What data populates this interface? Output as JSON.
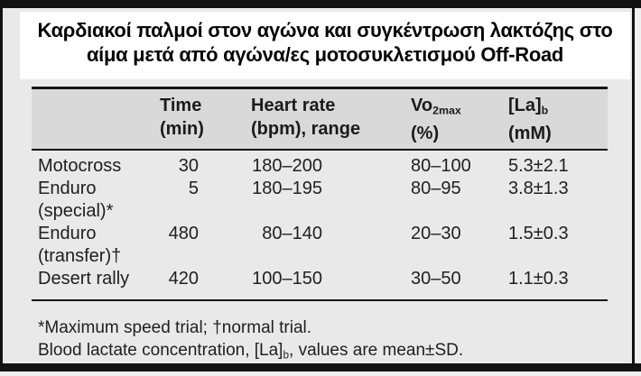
{
  "title": {
    "line1": "Καρδιακοί παλμοί στον αγώνα και συγκέντρωση λακτόζης στο",
    "line2": "αίμα μετά από αγώνα/ες μοτοσυκλετισμού Off-Road"
  },
  "table": {
    "headers": {
      "time": {
        "line1": "Time",
        "line2": "(min)"
      },
      "heart_rate": {
        "line1": "Heart rate",
        "line2": "(bpm), range"
      },
      "vo2max": {
        "prefix": "Vo",
        "sub": "2max",
        "unit": "(%)"
      },
      "lactate": {
        "prefix": "[La]",
        "sub": "b",
        "unit": "(mM)"
      }
    },
    "rows": [
      {
        "name": "Motocross",
        "qualifier": "",
        "time": "30",
        "heart_rate": "180–200",
        "vo2max": "80–100",
        "lactate": "5.3±2.1"
      },
      {
        "name": "Enduro",
        "qualifier": "(special)*",
        "time": "5",
        "heart_rate": "180–195",
        "vo2max": "80–95",
        "lactate": "3.8±1.3"
      },
      {
        "name": "Enduro",
        "qualifier": "(transfer)†",
        "time": "480",
        "heart_rate": "80–140",
        "vo2max": "20–30",
        "lactate": "1.5±0.3"
      },
      {
        "name": "Desert rally",
        "qualifier": "",
        "time": "420",
        "heart_rate": "100–150",
        "vo2max": "30–50",
        "lactate": "1.1±0.3"
      }
    ]
  },
  "footnotes": {
    "line1": "*Maximum speed trial; †normal trial.",
    "line2_prefix": "Blood lactate concentration, [La]",
    "line2_sub": "b",
    "line2_suffix": ", values are mean±SD."
  },
  "colors": {
    "frame_border": "#121212",
    "page_background": "#e9e9e9",
    "header_background": "#d9d9d9",
    "title_background": "#ffffff",
    "text": "#1c1c1c"
  }
}
